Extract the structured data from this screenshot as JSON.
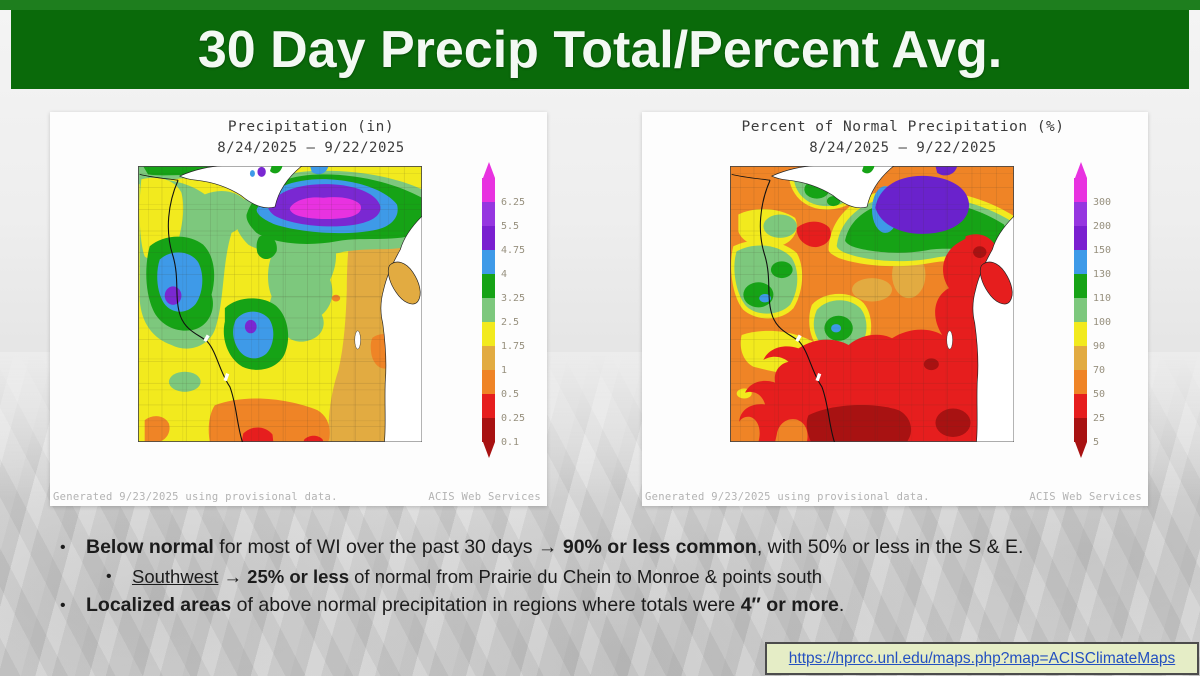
{
  "slide": {
    "title": "30 Day Precip Total/Percent Avg."
  },
  "maps": {
    "left": {
      "title": "Precipitation (in)",
      "date_range": "8/24/2025 – 9/22/2025",
      "legend_labels": [
        "6.25",
        "5.5",
        "4.75",
        "4",
        "3.25",
        "2.5",
        "1.75",
        "1",
        "0.5",
        "0.25",
        "0.1"
      ],
      "footer_generated": "Generated 9/23/2025  using provisional data.",
      "footer_service": "ACIS Web Services"
    },
    "right": {
      "title": "Percent of Normal Precipitation (%)",
      "date_range": "8/24/2025 – 9/22/2025",
      "legend_labels": [
        "300",
        "200",
        "150",
        "130",
        "110",
        "100",
        "90",
        "70",
        "50",
        "25",
        "5"
      ],
      "footer_generated": "Generated 9/23/2025  using provisional data.",
      "footer_service": "ACIS Web Services"
    }
  },
  "legend_colors": [
    "#e832e0",
    "#9636e0",
    "#7a1fd0",
    "#3e9ae8",
    "#16a316",
    "#7dc87d",
    "#f2ea1e",
    "#e2ab41",
    "#ef8426",
    "#e61e1e",
    "#a81212"
  ],
  "map_palette": {
    "magenta": "#e832e0",
    "purple": "#7a28d2",
    "violet": "#6a22cc",
    "blue": "#3e9ae8",
    "dark_green": "#16a316",
    "light_green": "#7dc87d",
    "yellow": "#f2ea1e",
    "gold": "#e2ab41",
    "orange": "#ef8426",
    "red": "#e61e1e",
    "dark_red": "#a81212"
  },
  "bullets": [
    {
      "level": 1,
      "runs": [
        {
          "t": "Below normal",
          "b": 1
        },
        {
          "t": " for most of WI over the past 30 days "
        },
        {
          "t": "→",
          "b": 1
        },
        {
          "t": " "
        },
        {
          "t": "90% or less common",
          "b": 1
        },
        {
          "t": ", with 50% or less in the S & E."
        }
      ]
    },
    {
      "level": 2,
      "runs": [
        {
          "t": "Southwest",
          "u": 1
        },
        {
          "t": " "
        },
        {
          "t": "→",
          "b": 1
        },
        {
          "t": " "
        },
        {
          "t": "25% or less",
          "b": 1
        },
        {
          "t": " of normal from Prairie du Chein to Monroe & points south"
        }
      ]
    },
    {
      "level": 1,
      "runs": [
        {
          "t": "Localized areas",
          "b": 1
        },
        {
          "t": " of above normal precipitation in regions where totals were "
        },
        {
          "t": "4″ or more",
          "b": 1
        },
        {
          "t": "."
        }
      ]
    }
  ],
  "link": {
    "text": "https://hprcc.unl.edu/maps.php?map=ACISClimateMaps"
  }
}
